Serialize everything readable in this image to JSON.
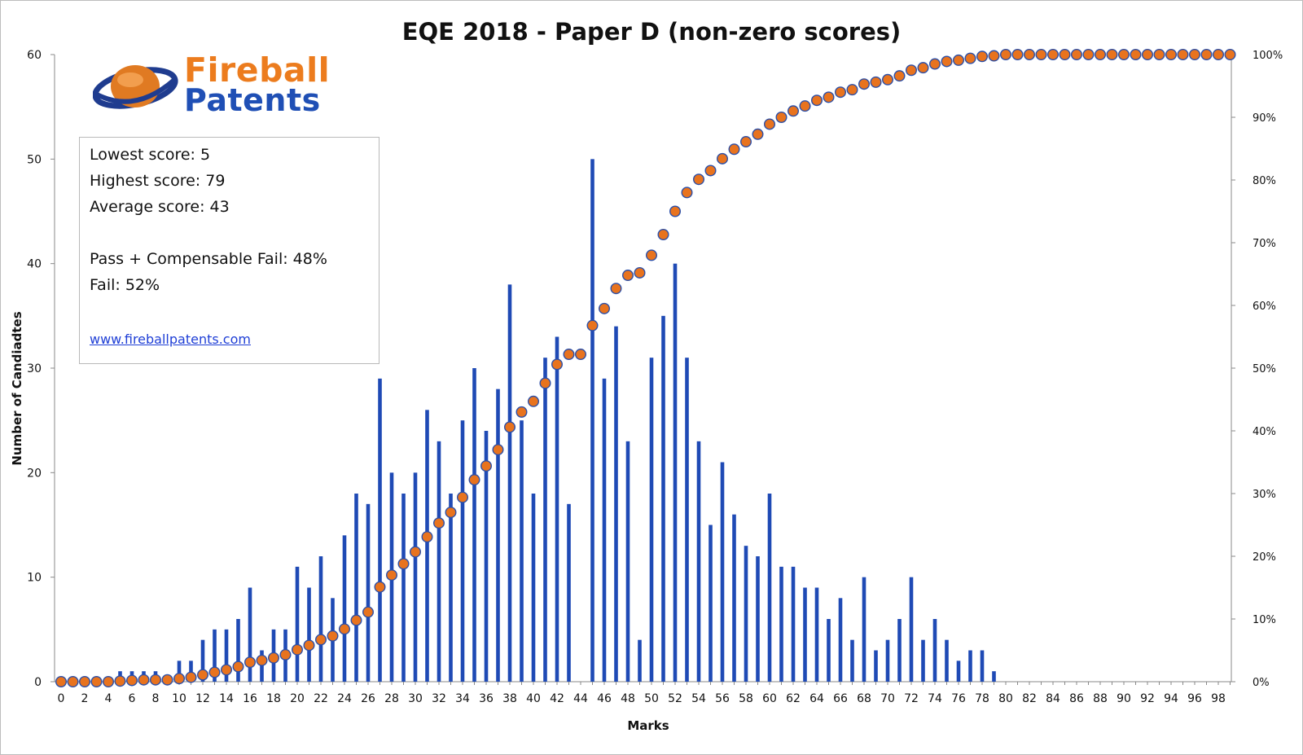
{
  "chart_data": {
    "type": "bar+scatter",
    "title": "EQE 2018 - Paper D (non-zero scores)",
    "xlabel": "Marks",
    "ylabel": "Number of Candiadtes",
    "xlim": [
      0,
      99
    ],
    "ylim": [
      0,
      60
    ],
    "y2lim": [
      0,
      1
    ],
    "x_tick_labels": [
      "0",
      "2",
      "4",
      "6",
      "8",
      "10",
      "12",
      "14",
      "16",
      "18",
      "20",
      "22",
      "24",
      "26",
      "28",
      "30",
      "32",
      "34",
      "36",
      "38",
      "40",
      "42",
      "44",
      "46",
      "48",
      "50",
      "52",
      "54",
      "56",
      "58",
      "60",
      "62",
      "64",
      "66",
      "68",
      "70",
      "72",
      "74",
      "76",
      "78",
      "80",
      "82",
      "84",
      "86",
      "88",
      "90",
      "92",
      "94",
      "96",
      "98"
    ],
    "y_tick_labels": [
      "0",
      "10",
      "20",
      "30",
      "40",
      "50",
      "60"
    ],
    "y2_tick_labels": [
      "0%",
      "10%",
      "20%",
      "30%",
      "40%",
      "50%",
      "60%",
      "70%",
      "80%",
      "90%",
      "100%"
    ],
    "series": [
      {
        "type": "bar",
        "color": "#1f4ab5",
        "x": [
          0,
          1,
          2,
          3,
          4,
          5,
          6,
          7,
          8,
          9,
          10,
          11,
          12,
          13,
          14,
          15,
          16,
          17,
          18,
          19,
          20,
          21,
          22,
          23,
          24,
          25,
          26,
          27,
          28,
          29,
          30,
          31,
          32,
          33,
          34,
          35,
          36,
          37,
          38,
          39,
          40,
          41,
          42,
          43,
          44,
          45,
          46,
          47,
          48,
          49,
          50,
          51,
          52,
          53,
          54,
          55,
          56,
          57,
          58,
          59,
          60,
          61,
          62,
          63,
          64,
          65,
          66,
          67,
          68,
          69,
          70,
          71,
          72,
          73,
          74,
          75,
          76,
          77,
          78,
          79,
          80,
          81,
          82,
          83,
          84,
          85,
          86,
          87,
          88,
          89,
          90,
          91,
          92,
          93,
          94,
          95,
          96,
          97,
          98,
          99
        ],
        "values": [
          0,
          0,
          0,
          0,
          0,
          1,
          1,
          1,
          1,
          0,
          2,
          2,
          4,
          5,
          5,
          6,
          9,
          3,
          5,
          5,
          11,
          9,
          12,
          8,
          14,
          18,
          17,
          29,
          20,
          18,
          20,
          26,
          23,
          18,
          25,
          30,
          24,
          28,
          38,
          25,
          18,
          31,
          33,
          17,
          0,
          50,
          29,
          34,
          23,
          4,
          31,
          35,
          40,
          31,
          23,
          15,
          21,
          16,
          13,
          12,
          18,
          11,
          11,
          9,
          9,
          6,
          8,
          4,
          10,
          3,
          4,
          6,
          10,
          4,
          6,
          4,
          2,
          3,
          3,
          1,
          0,
          0,
          0,
          0,
          0,
          0,
          0,
          0,
          0,
          0,
          0,
          0,
          0,
          0,
          0,
          0,
          0,
          0,
          0,
          0
        ]
      },
      {
        "type": "scatter",
        "axis": "right",
        "color": "#e8731e",
        "edge_color": "#2b4fa8",
        "x": [
          0,
          1,
          2,
          3,
          4,
          5,
          6,
          7,
          8,
          9,
          10,
          11,
          12,
          13,
          14,
          15,
          16,
          17,
          18,
          19,
          20,
          21,
          22,
          23,
          24,
          25,
          26,
          27,
          28,
          29,
          30,
          31,
          32,
          33,
          34,
          35,
          36,
          37,
          38,
          39,
          40,
          41,
          42,
          43,
          44,
          45,
          46,
          47,
          48,
          49,
          50,
          51,
          52,
          53,
          54,
          55,
          56,
          57,
          58,
          59,
          60,
          61,
          62,
          63,
          64,
          65,
          66,
          67,
          68,
          69,
          70,
          71,
          72,
          73,
          74,
          75,
          76,
          77,
          78,
          79,
          80,
          81,
          82,
          83,
          84,
          85,
          86,
          87,
          88,
          89,
          90,
          91,
          92,
          93,
          94,
          95,
          96,
          97,
          98,
          99
        ],
        "values": [
          0,
          0,
          0,
          0,
          0,
          0.001,
          0.002,
          0.003,
          0.003,
          0.003,
          0.005,
          0.007,
          0.011,
          0.015,
          0.019,
          0.024,
          0.031,
          0.034,
          0.038,
          0.043,
          0.051,
          0.058,
          0.067,
          0.073,
          0.084,
          0.098,
          0.111,
          0.151,
          0.17,
          0.188,
          0.207,
          0.231,
          0.253,
          0.27,
          0.294,
          0.322,
          0.344,
          0.37,
          0.406,
          0.43,
          0.447,
          0.476,
          0.506,
          0.522,
          0.522,
          0.568,
          0.595,
          0.627,
          0.648,
          0.652,
          0.68,
          0.713,
          0.75,
          0.78,
          0.801,
          0.815,
          0.834,
          0.849,
          0.861,
          0.873,
          0.889,
          0.9,
          0.91,
          0.918,
          0.927,
          0.932,
          0.94,
          0.944,
          0.953,
          0.956,
          0.96,
          0.966,
          0.975,
          0.979,
          0.985,
          0.989,
          0.991,
          0.994,
          0.997,
          0.998,
          1,
          1,
          1,
          1,
          1,
          1,
          1,
          1,
          1,
          1,
          1,
          1,
          1,
          1,
          1,
          1,
          1,
          1,
          1,
          1
        ]
      }
    ]
  },
  "logo": {
    "line1": "Fireball",
    "line2": "Patents",
    "primary_color": "#ec7c1e",
    "secondary_color": "#1f4fb5"
  },
  "infobox": {
    "lowest": "Lowest score: 5",
    "highest": "Highest score: 79",
    "average": "Average score: 43",
    "pass": "Pass + Compensable Fail: 48%",
    "fail": "Fail: 52%",
    "link": "www.fireballpatents.com"
  }
}
